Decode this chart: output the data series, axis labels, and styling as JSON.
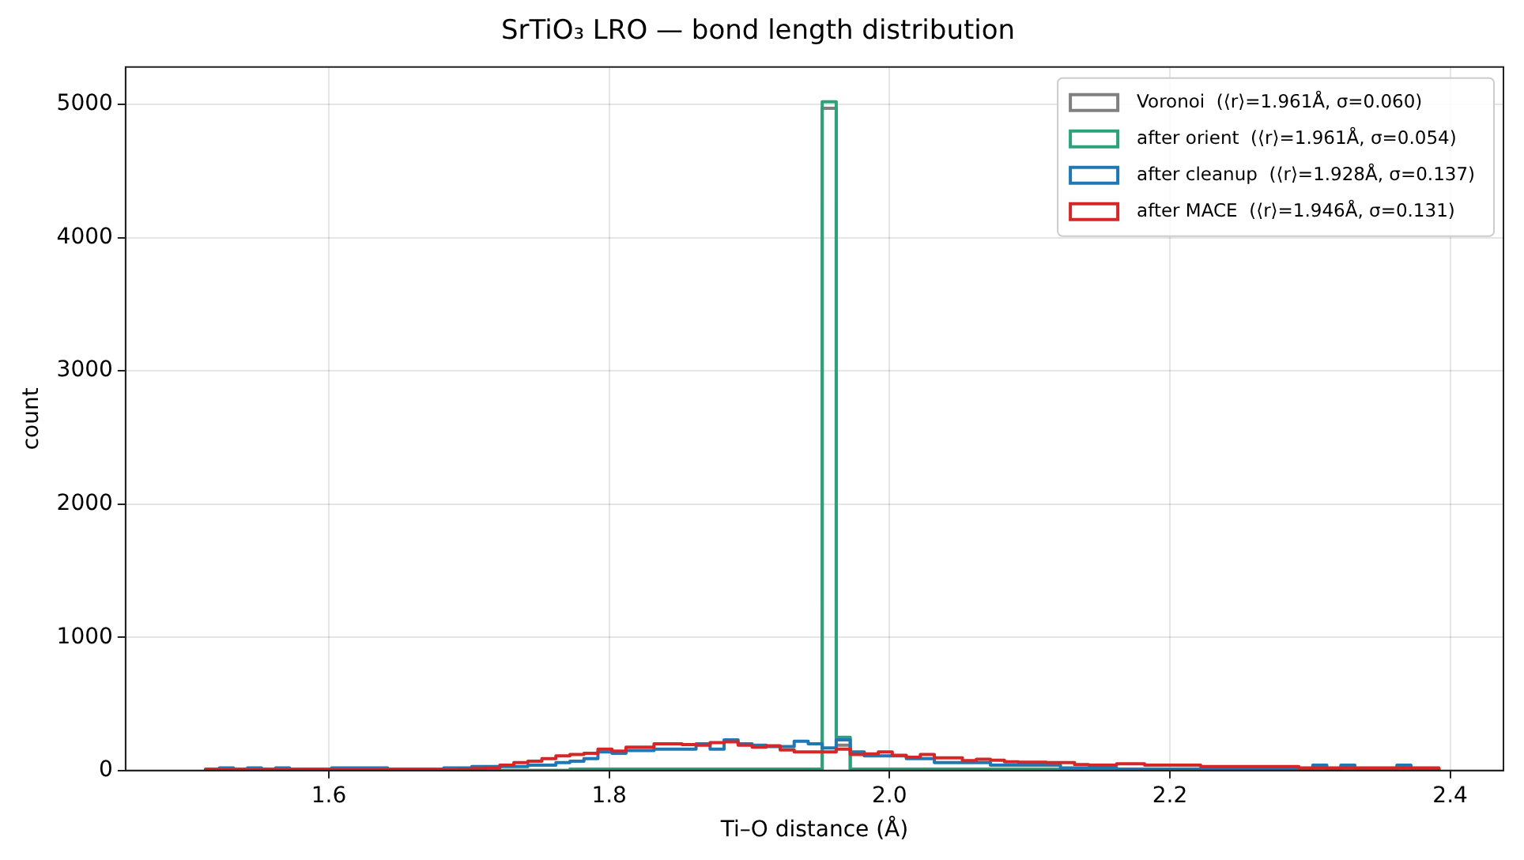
{
  "chart_data": {
    "type": "histogram",
    "title": "SrTiO₃ LRO — bond length distribution",
    "xlabel": "Ti–O distance (Å)",
    "ylabel": "count",
    "bins": [
      1.512,
      1.522,
      1.532,
      1.542,
      1.552,
      1.562,
      1.572,
      1.582,
      1.592,
      1.602,
      1.612,
      1.622,
      1.632,
      1.642,
      1.652,
      1.662,
      1.672,
      1.682,
      1.692,
      1.702,
      1.712,
      1.722,
      1.732,
      1.742,
      1.752,
      1.762,
      1.772,
      1.782,
      1.792,
      1.802,
      1.812,
      1.822,
      1.832,
      1.842,
      1.852,
      1.862,
      1.872,
      1.882,
      1.892,
      1.902,
      1.912,
      1.922,
      1.932,
      1.942,
      1.952,
      1.962,
      1.972,
      1.982,
      1.992,
      2.002,
      2.012,
      2.022,
      2.032,
      2.042,
      2.052,
      2.062,
      2.072,
      2.082,
      2.092,
      2.102,
      2.112,
      2.122,
      2.132,
      2.142,
      2.152,
      2.162,
      2.172,
      2.182,
      2.192,
      2.202,
      2.212,
      2.222,
      2.232,
      2.242,
      2.252,
      2.262,
      2.272,
      2.282,
      2.292,
      2.302,
      2.312,
      2.322,
      2.332,
      2.342,
      2.352,
      2.362,
      2.372,
      2.382,
      2.392
    ],
    "series": [
      {
        "name": "Voronoi  (⟨r⟩=1.961Å, σ=0.060)",
        "color": "#808080",
        "values": [
          0,
          0,
          0,
          10,
          0,
          0,
          0,
          0,
          0,
          0,
          0,
          0,
          0,
          0,
          0,
          0,
          0,
          0,
          0,
          0,
          0,
          0,
          0,
          0,
          0,
          0,
          0,
          0,
          0,
          0,
          10,
          10,
          0,
          0,
          0,
          0,
          0,
          0,
          0,
          0,
          0,
          0,
          0,
          0,
          4970,
          190,
          0,
          0,
          0,
          0,
          0,
          0,
          0,
          0,
          0,
          0,
          0,
          0,
          0,
          0,
          0,
          0,
          0,
          0,
          0,
          0,
          0,
          0,
          0,
          0,
          0,
          0,
          0,
          0,
          0,
          0,
          0,
          0,
          0,
          0,
          0,
          0,
          0,
          0,
          0,
          0,
          0,
          0
        ]
      },
      {
        "name": "after orient  (⟨r⟩=1.961Å, σ=0.054)",
        "color": "#2ca27a",
        "values": [
          0,
          10,
          10,
          0,
          0,
          0,
          0,
          0,
          0,
          0,
          0,
          0,
          0,
          0,
          0,
          0,
          0,
          0,
          0,
          0,
          0,
          0,
          0,
          0,
          0,
          0,
          10,
          10,
          10,
          10,
          10,
          10,
          10,
          10,
          10,
          10,
          10,
          10,
          10,
          10,
          10,
          10,
          10,
          10,
          5020,
          250,
          10,
          10,
          10,
          10,
          10,
          10,
          10,
          10,
          10,
          10,
          10,
          10,
          10,
          10,
          10,
          0,
          0,
          0,
          0,
          0,
          0,
          0,
          0,
          0,
          0,
          0,
          0,
          0,
          0,
          0,
          0,
          0,
          0,
          0,
          0,
          0,
          0,
          0,
          0,
          0,
          0,
          0
        ]
      },
      {
        "name": "after cleanup  (⟨r⟩=1.928Å, σ=0.137)",
        "color": "#1f77b4",
        "values": [
          10,
          20,
          10,
          20,
          10,
          20,
          10,
          10,
          10,
          20,
          20,
          20,
          20,
          10,
          10,
          10,
          10,
          20,
          20,
          30,
          30,
          30,
          30,
          40,
          40,
          60,
          70,
          90,
          140,
          130,
          150,
          150,
          160,
          160,
          160,
          200,
          160,
          230,
          200,
          190,
          180,
          180,
          220,
          200,
          170,
          230,
          140,
          110,
          110,
          110,
          90,
          90,
          60,
          60,
          60,
          60,
          40,
          40,
          40,
          40,
          40,
          20,
          20,
          20,
          20,
          10,
          10,
          10,
          10,
          10,
          10,
          10,
          10,
          10,
          10,
          10,
          10,
          10,
          10,
          40,
          10,
          40,
          10,
          10,
          10,
          40,
          10,
          10
        ]
      },
      {
        "name": "after MACE  (⟨r⟩=1.946Å, σ=0.131)",
        "color": "#d62728",
        "values": [
          5,
          5,
          5,
          5,
          5,
          5,
          5,
          5,
          5,
          5,
          5,
          5,
          5,
          5,
          5,
          5,
          5,
          5,
          10,
          15,
          20,
          40,
          60,
          70,
          90,
          110,
          120,
          130,
          160,
          145,
          175,
          175,
          200,
          200,
          195,
          190,
          210,
          215,
          190,
          175,
          185,
          155,
          140,
          140,
          140,
          160,
          120,
          125,
          140,
          115,
          100,
          120,
          95,
          95,
          75,
          85,
          78,
          65,
          62,
          62,
          60,
          60,
          45,
          40,
          40,
          50,
          50,
          40,
          40,
          40,
          40,
          30,
          30,
          30,
          30,
          30,
          30,
          30,
          20,
          20,
          20,
          20,
          20,
          20,
          20,
          20,
          20,
          20
        ]
      }
    ],
    "xlim": [
      1.455,
      2.438
    ],
    "xticks": [
      1.6,
      1.8,
      {
        "value": 2,
        "label": "2.0"
      },
      2.2,
      2.4
    ],
    "ylim": [
      0,
      5280
    ],
    "yticks": [
      0,
      1000,
      2000,
      3000,
      4000,
      5000
    ],
    "grid": true,
    "legend": "top right"
  }
}
